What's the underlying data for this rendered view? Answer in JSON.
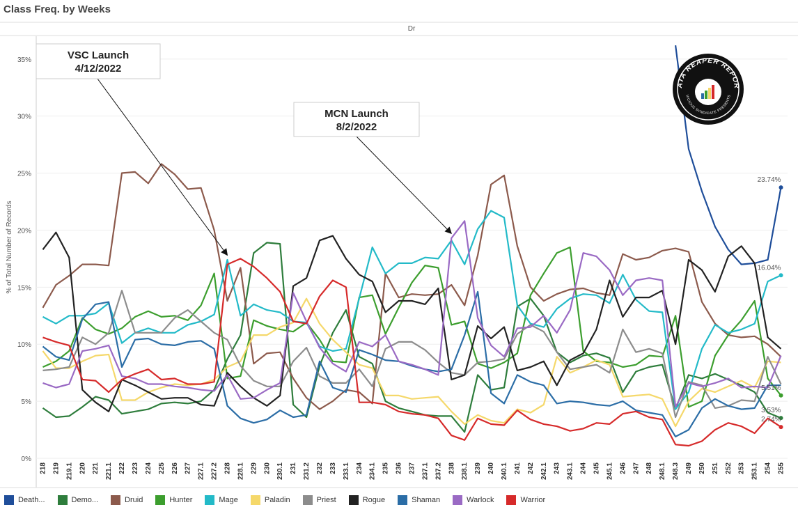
{
  "title": "Class Freq. by Weeks",
  "chart_data": {
    "type": "line",
    "header": "Dr",
    "ylabel": "% of Total Number of Records",
    "ylim": [
      0,
      37
    ],
    "yticks": [
      0,
      5,
      10,
      15,
      20,
      25,
      30,
      35
    ],
    "ytick_labels": [
      "0%",
      "5%",
      "10%",
      "15%",
      "20%",
      "25%",
      "30%",
      "35%"
    ],
    "x": [
      "218",
      "219",
      "219.1",
      "220",
      "221",
      "221.1",
      "222",
      "223",
      "224",
      "225",
      "226",
      "227",
      "227.1",
      "227.2",
      "228",
      "228.1",
      "229",
      "230",
      "230.1",
      "231",
      "231.2",
      "232",
      "233",
      "233.1",
      "234",
      "234.1",
      "235",
      "236",
      "237",
      "237.1",
      "237.2",
      "238",
      "238.1",
      "239",
      "240",
      "240.1",
      "241",
      "242",
      "242.1",
      "243",
      "243.1",
      "244",
      "245",
      "245.1",
      "246",
      "247",
      "248",
      "248.1",
      "248.3",
      "249",
      "250",
      "251",
      "252",
      "253",
      "253.1",
      "254",
      "255"
    ],
    "series": [
      {
        "name": "Death...",
        "color": "#1f4e9a",
        "values": [
          null,
          null,
          null,
          null,
          null,
          null,
          null,
          null,
          null,
          null,
          null,
          null,
          null,
          null,
          null,
          null,
          null,
          null,
          null,
          null,
          null,
          null,
          null,
          null,
          null,
          null,
          null,
          null,
          null,
          null,
          null,
          null,
          null,
          null,
          null,
          null,
          null,
          null,
          null,
          null,
          null,
          null,
          null,
          null,
          null,
          null,
          null,
          null,
          36.2,
          27.1,
          23.4,
          20.3,
          18.3,
          17.0,
          17.1,
          17.4,
          23.74
        ],
        "end_label": "23.74%"
      },
      {
        "name": "Demo...",
        "color": "#2e7d3c",
        "values": [
          4.4,
          3.6,
          3.7,
          4.5,
          5.4,
          5.1,
          3.9,
          4.1,
          4.3,
          4.8,
          4.9,
          4.8,
          5.0,
          6.0,
          8.7,
          10.8,
          18.0,
          18.9,
          18.8,
          4.7,
          3.6,
          8.1,
          11.0,
          13.0,
          8.9,
          8.3,
          5.0,
          4.4,
          4.1,
          3.8,
          3.7,
          3.7,
          2.3,
          7.3,
          6.0,
          6.2,
          13.3,
          14.0,
          12.5,
          9.3,
          8.4,
          9.0,
          9.2,
          8.8,
          5.8,
          7.6,
          8.0,
          8.2,
          4.3,
          7.3,
          7.0,
          7.4,
          6.9,
          6.4,
          5.8,
          4.0,
          3.53
        ],
        "end_label": "3.53%"
      },
      {
        "name": "Druid",
        "color": "#8c5a4c",
        "values": [
          13.2,
          15.2,
          16.0,
          17.0,
          17.0,
          16.9,
          25.0,
          25.1,
          24.1,
          25.8,
          24.9,
          23.6,
          23.7,
          20.0,
          13.8,
          16.7,
          8.3,
          9.2,
          9.3,
          7.0,
          5.3,
          4.3,
          5.0,
          6.0,
          5.8,
          4.8,
          16.2,
          14.1,
          14.4,
          14.3,
          14.4,
          15.2,
          13.4,
          17.8,
          24.0,
          24.8,
          18.6,
          15.0,
          13.8,
          14.4,
          14.8,
          14.9,
          14.5,
          14.3,
          17.9,
          17.4,
          17.6,
          18.2,
          18.4,
          18.1,
          13.7,
          11.8,
          10.8,
          10.6,
          10.7,
          10.0,
          8.9
        ]
      },
      {
        "name": "Hunter",
        "color": "#3c9e2e",
        "values": [
          8.0,
          8.5,
          9.4,
          12.3,
          11.3,
          10.9,
          11.4,
          12.4,
          12.9,
          12.4,
          12.5,
          12.1,
          13.4,
          16.2,
          7.0,
          7.2,
          12.1,
          11.6,
          11.3,
          11.1,
          11.9,
          10.4,
          8.5,
          8.4,
          14.1,
          14.3,
          10.9,
          13.2,
          15.4,
          16.9,
          16.7,
          11.7,
          12.0,
          8.3,
          7.9,
          8.4,
          9.2,
          14.3,
          16.2,
          18.0,
          18.5,
          9.4,
          8.5,
          8.4,
          8.0,
          8.2,
          9.0,
          8.9,
          12.5,
          4.5,
          5.0,
          9.0,
          10.8,
          12.1,
          13.8,
          7.0,
          5.51
        ],
        "end_label": "5.51%"
      },
      {
        "name": "Mage",
        "color": "#23bac8",
        "values": [
          12.4,
          11.8,
          12.5,
          12.5,
          12.7,
          13.6,
          10.1,
          11.0,
          11.4,
          11.0,
          11.0,
          11.7,
          12.0,
          12.6,
          17.4,
          12.5,
          13.5,
          13.0,
          12.8,
          12.0,
          11.9,
          9.8,
          9.4,
          9.6,
          14.0,
          18.5,
          16.2,
          17.1,
          17.1,
          17.6,
          17.5,
          19.1,
          17.0,
          20.1,
          21.7,
          21.1,
          13.4,
          11.8,
          11.5,
          13.1,
          14.0,
          14.4,
          14.3,
          13.6,
          16.1,
          13.9,
          12.9,
          12.8,
          4.3,
          5.8,
          9.6,
          11.7,
          11.0,
          11.3,
          11.8,
          15.5,
          16.04
        ],
        "end_label": "16.04%"
      },
      {
        "name": "Paladin",
        "color": "#f5d86a",
        "values": [
          9.4,
          7.9,
          7.9,
          8.5,
          9.0,
          9.1,
          5.1,
          5.1,
          5.8,
          6.2,
          6.5,
          6.4,
          6.5,
          6.9,
          8.0,
          8.5,
          10.8,
          10.8,
          11.5,
          11.9,
          14.0,
          11.8,
          10.4,
          9.3,
          8.2,
          7.9,
          5.5,
          5.5,
          5.2,
          5.3,
          5.4,
          4.1,
          3.0,
          3.8,
          3.3,
          3.1,
          4.3,
          4.0,
          4.7,
          8.9,
          7.5,
          8.0,
          8.6,
          8.2,
          5.4,
          5.5,
          5.6,
          5.2,
          2.8,
          5.0,
          6.1,
          5.8,
          6.3,
          6.8,
          6.2,
          8.5,
          8.4
        ]
      },
      {
        "name": "Priest",
        "color": "#8c8c8c",
        "values": [
          7.7,
          7.8,
          8.0,
          10.6,
          10.0,
          11.0,
          14.7,
          11.0,
          11.0,
          11.0,
          12.3,
          13.0,
          12.0,
          11.0,
          10.4,
          8.1,
          6.8,
          6.3,
          6.3,
          8.5,
          9.7,
          7.2,
          6.6,
          6.6,
          7.8,
          6.3,
          9.6,
          10.2,
          10.2,
          9.5,
          8.4,
          7.5,
          7.3,
          8.4,
          8.5,
          8.7,
          10.9,
          11.7,
          11.1,
          9.3,
          7.8,
          8.0,
          8.2,
          7.5,
          11.3,
          9.3,
          9.6,
          9.2,
          3.6,
          6.7,
          6.4,
          4.4,
          4.6,
          5.1,
          5.0,
          8.9,
          6.5
        ]
      },
      {
        "name": "Rogue",
        "color": "#222222",
        "values": [
          18.3,
          19.8,
          17.6,
          6.0,
          4.9,
          4.1,
          6.9,
          6.4,
          5.8,
          5.2,
          5.3,
          5.3,
          4.7,
          4.6,
          7.5,
          6.3,
          5.3,
          4.6,
          5.5,
          15.1,
          15.8,
          19.1,
          19.5,
          17.5,
          16.1,
          15.5,
          12.8,
          13.8,
          13.8,
          13.5,
          14.9,
          6.9,
          7.3,
          11.6,
          10.5,
          11.5,
          7.7,
          8.0,
          8.5,
          6.4,
          8.6,
          9.2,
          11.3,
          15.6,
          12.4,
          14.1,
          14.1,
          14.7,
          10.0,
          17.4,
          16.5,
          14.6,
          17.7,
          18.6,
          17.1,
          10.6,
          9.6
        ]
      },
      {
        "name": "Shaman",
        "color": "#2b6da6",
        "values": [
          9.8,
          8.9,
          8.6,
          12.2,
          13.5,
          13.7,
          8.0,
          10.4,
          10.5,
          10.0,
          9.9,
          10.2,
          10.3,
          9.6,
          4.6,
          3.5,
          3.1,
          3.4,
          4.2,
          3.6,
          3.8,
          8.5,
          6.2,
          5.8,
          9.5,
          9.1,
          8.6,
          8.5,
          8.1,
          7.8,
          7.6,
          7.8,
          10.8,
          14.6,
          5.7,
          4.8,
          7.3,
          6.7,
          6.4,
          4.8,
          5.0,
          4.9,
          4.7,
          4.6,
          5.0,
          4.2,
          4.0,
          3.8,
          1.9,
          2.5,
          4.4,
          5.2,
          4.6,
          4.3,
          4.4,
          6.4,
          6.4
        ]
      },
      {
        "name": "Warlock",
        "color": "#9a6ac4",
        "values": [
          6.6,
          6.2,
          6.5,
          9.4,
          9.6,
          9.9,
          7.2,
          7.0,
          6.5,
          6.5,
          6.3,
          6.2,
          6.0,
          5.9,
          7.3,
          5.2,
          5.3,
          6.0,
          6.6,
          14.5,
          12.0,
          9.7,
          8.3,
          7.6,
          10.2,
          9.8,
          10.8,
          8.5,
          8.2,
          7.8,
          7.3,
          19.3,
          20.8,
          12.3,
          9.9,
          8.9,
          11.4,
          11.5,
          12.5,
          11.0,
          13.0,
          18.0,
          17.7,
          16.5,
          14.3,
          15.6,
          15.8,
          15.6,
          4.5,
          6.6,
          6.3,
          6.6,
          7.0,
          6.2,
          6.3,
          6.2,
          9.0
        ]
      },
      {
        "name": "Warrior",
        "color": "#d62a2a",
        "values": [
          10.6,
          10.2,
          9.9,
          6.9,
          6.8,
          5.8,
          6.9,
          7.4,
          7.8,
          6.9,
          7.0,
          6.5,
          6.5,
          6.7,
          17.0,
          17.5,
          16.8,
          15.8,
          14.6,
          12.0,
          11.8,
          14.2,
          15.6,
          15.0,
          4.9,
          4.9,
          4.7,
          4.1,
          3.9,
          3.8,
          3.5,
          2.0,
          1.6,
          3.5,
          3.0,
          2.9,
          4.2,
          3.4,
          3.0,
          2.8,
          2.4,
          2.6,
          3.1,
          3.0,
          3.9,
          4.1,
          3.6,
          3.4,
          1.2,
          1.1,
          1.5,
          2.5,
          3.1,
          2.8,
          2.2,
          3.5,
          2.74
        ],
        "end_label": "2.74%"
      }
    ],
    "annotations": [
      {
        "text1": "VSC Launch",
        "text2": "4/12/2022",
        "target_x": "228",
        "target_y": 17.8
      },
      {
        "text1": "MCN Launch",
        "text2": "8/2/2022",
        "target_x": "238",
        "target_y": 19.7
      }
    ],
    "grid": true,
    "legend_position": "bottom"
  },
  "logo": {
    "top_text": "DATA REAPER REPORT",
    "bottom_text": "VICIOUS SYNDICATE PRESENTS"
  }
}
